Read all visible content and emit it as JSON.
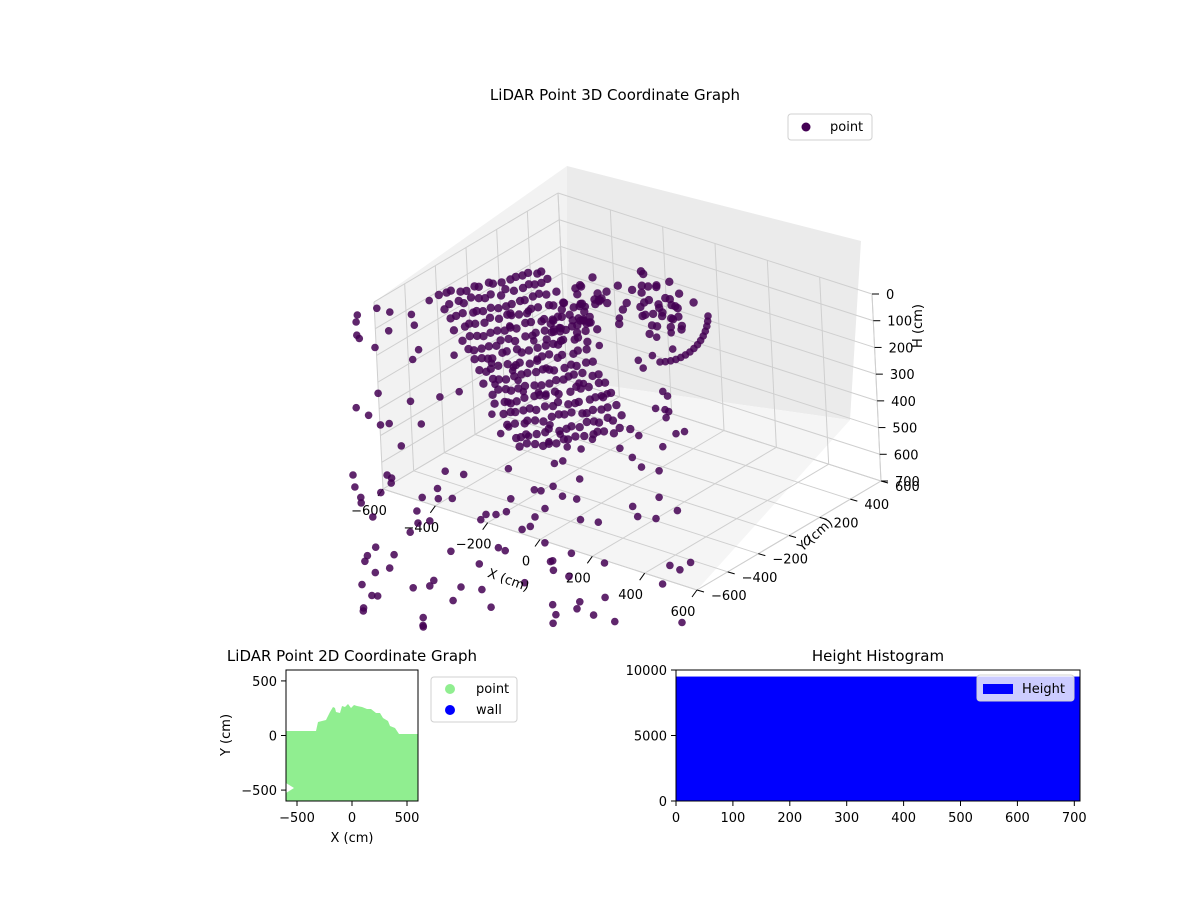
{
  "figure": {
    "chart3d_title": "LiDAR Point 3D Coordinate Graph",
    "chart2d_title": "LiDAR Point 2D Coordinate Graph",
    "hist_title": "Height Histogram"
  },
  "chart_data": [
    {
      "type": "scatter",
      "title": "LiDAR Point 3D Coordinate Graph",
      "xlabel": "X (cm)",
      "ylabel": "Y (cm)",
      "zlabel": "H (cm)",
      "xlim": [
        -600,
        600
      ],
      "ylim": [
        -600,
        600
      ],
      "zlim": [
        0,
        700
      ],
      "z_inverted": true,
      "x_ticks": [
        "−600",
        "−400",
        "−200",
        "0",
        "200",
        "400",
        "600"
      ],
      "y_ticks": [
        "−600",
        "−400",
        "−200",
        "0",
        "200",
        "400",
        "600"
      ],
      "z_ticks": [
        "0",
        "100",
        "200",
        "300",
        "400",
        "500",
        "600",
        "700"
      ],
      "legend": [
        "point"
      ],
      "legend_position": "top-right",
      "colors": {
        "point": "#440154"
      },
      "grid": true,
      "series": [
        {
          "name": "point",
          "clusters": [
            {
              "desc": "fan",
              "x_range": [
                -650,
                200
              ],
              "y_range": [
                -100,
                500
              ],
              "h_range": [
                0,
                200
              ]
            },
            {
              "desc": "dome",
              "x_range": [
                250,
                600
              ],
              "y_range": [
                350,
                600
              ],
              "h_range": [
                0,
                150
              ]
            },
            {
              "desc": "scattered",
              "x_range": [
                -600,
                600
              ],
              "y_range": [
                -600,
                600
              ],
              "h_range": [
                0,
                700
              ]
            }
          ]
        }
      ]
    },
    {
      "type": "scatter",
      "title": "LiDAR Point 2D Coordinate Graph",
      "xlabel": "X (cm)",
      "ylabel": "Y (cm)",
      "xlim": [
        -600,
        600
      ],
      "ylim": [
        -600,
        600
      ],
      "x_ticks": [
        "−500",
        "0",
        "500"
      ],
      "y_ticks": [
        "−500",
        "0",
        "500"
      ],
      "legend": [
        "point",
        "wall"
      ],
      "legend_position": "outside-right",
      "colors": {
        "point": "#90ee90",
        "wall": "#0000ff"
      },
      "series": [
        {
          "name": "point",
          "region": {
            "x": [
              -600,
              600
            ],
            "y": [
              -600,
              230
            ]
          }
        },
        {
          "name": "wall",
          "values": []
        }
      ]
    },
    {
      "type": "bar",
      "title": "Height Histogram",
      "xlim": [
        0,
        710
      ],
      "ylim": [
        0,
        10000
      ],
      "x_ticks": [
        "0",
        "100",
        "200",
        "300",
        "400",
        "500",
        "600",
        "700"
      ],
      "y_ticks": [
        "0",
        "5000",
        "10000"
      ],
      "legend": [
        "Height"
      ],
      "legend_position": "top-right",
      "colors": {
        "Height": "#0000ff"
      },
      "series": [
        {
          "name": "Height",
          "bin_range": [
            0,
            710
          ],
          "value": 9500
        }
      ]
    }
  ]
}
